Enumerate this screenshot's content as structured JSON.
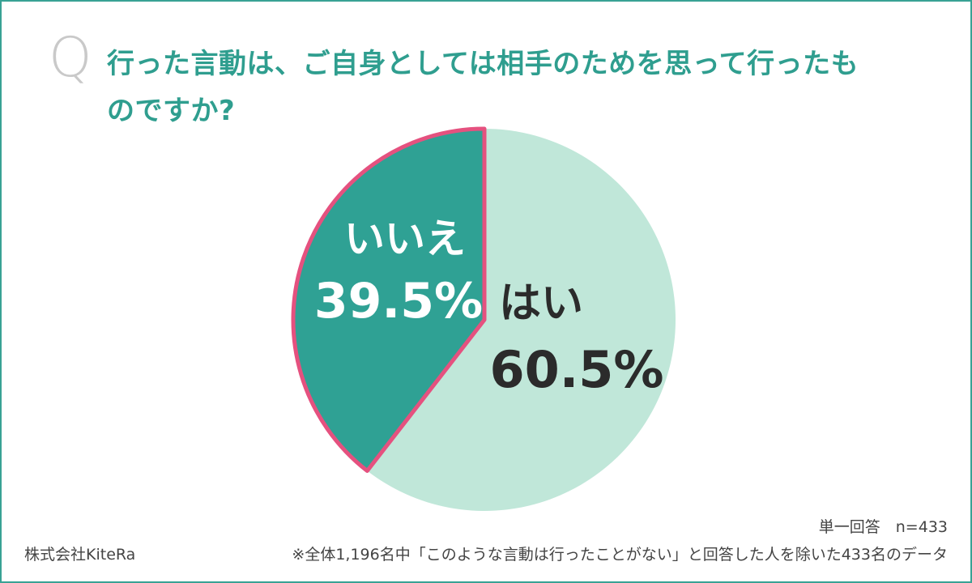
{
  "header": {
    "q_mark": "Q",
    "question": "行った言動は、ご自身としては相手のためを思って行ったものですか?"
  },
  "chart_data": {
    "type": "pie",
    "title": "行った言動は、ご自身としては相手のためを思って行ったものですか?",
    "slices": [
      {
        "label": "はい",
        "value": 60.5,
        "display": "60.5%",
        "color": "#c0e7d9",
        "text_color": "#2b2b2b"
      },
      {
        "label": "いいえ",
        "value": 39.5,
        "display": "39.5%",
        "color": "#2fa194",
        "text_color": "#ffffff"
      }
    ],
    "highlight_color": "#e5517f"
  },
  "footer": {
    "company": "株式会社KiteRa",
    "sample": "単一回答　n=433",
    "note": "※全体1,196名中「このような言動は行ったことがない」と回答した人を除いた433名のデータ"
  }
}
